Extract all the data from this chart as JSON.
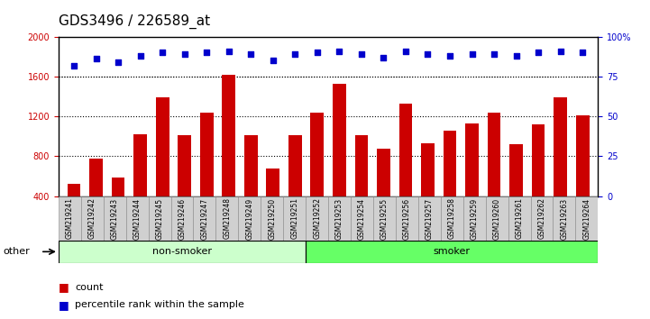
{
  "title": "GDS3496 / 226589_at",
  "samples": [
    "GSM219241",
    "GSM219242",
    "GSM219243",
    "GSM219244",
    "GSM219245",
    "GSM219246",
    "GSM219247",
    "GSM219248",
    "GSM219249",
    "GSM219250",
    "GSM219251",
    "GSM219252",
    "GSM219253",
    "GSM219254",
    "GSM219255",
    "GSM219256",
    "GSM219257",
    "GSM219258",
    "GSM219259",
    "GSM219260",
    "GSM219261",
    "GSM219262",
    "GSM219263",
    "GSM219264"
  ],
  "counts": [
    520,
    780,
    590,
    1020,
    1390,
    1010,
    1240,
    1620,
    1010,
    680,
    1010,
    1240,
    1530,
    1010,
    880,
    1330,
    930,
    1060,
    1130,
    1240,
    920,
    1120,
    1390,
    1210
  ],
  "percentile_ranks": [
    82,
    86,
    84,
    88,
    90,
    89,
    90,
    91,
    89,
    85,
    89,
    90,
    91,
    89,
    87,
    91,
    89,
    88,
    89,
    89,
    88,
    90,
    91,
    90
  ],
  "groups": [
    "non-smoker",
    "non-smoker",
    "non-smoker",
    "non-smoker",
    "non-smoker",
    "non-smoker",
    "non-smoker",
    "non-smoker",
    "non-smoker",
    "non-smoker",
    "non-smoker",
    "smoker",
    "smoker",
    "smoker",
    "smoker",
    "smoker",
    "smoker",
    "smoker",
    "smoker",
    "smoker",
    "smoker",
    "smoker",
    "smoker",
    "smoker"
  ],
  "non_smoker_color": "#ccffcc",
  "smoker_color": "#66ff66",
  "bar_color": "#cc0000",
  "dot_color": "#0000cc",
  "ylim_left": [
    400,
    2000
  ],
  "ylim_right": [
    0,
    100
  ],
  "yticks_left": [
    400,
    800,
    1200,
    1600,
    2000
  ],
  "yticks_right": [
    0,
    25,
    50,
    75,
    100
  ],
  "grid_values": [
    800,
    1200,
    1600
  ],
  "plot_bg": "#ffffff",
  "title_fontsize": 11,
  "tick_fontsize": 7,
  "legend_items": [
    "count",
    "percentile rank within the sample"
  ]
}
